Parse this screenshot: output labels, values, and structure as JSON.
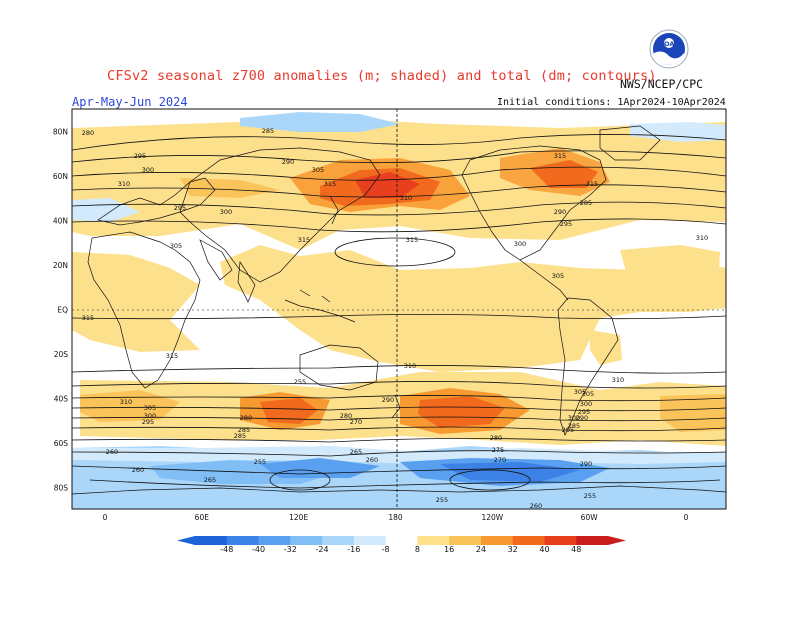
{
  "header": {
    "title": "CFSv2 seasonal z700 anomalies (m; shaded) and total (dm; contours)",
    "period": "Apr-May-Jun 2024",
    "initial_conditions": "Initial conditions: 1Apr2024-10Apr2024",
    "agency": "NWS/NCEP/CPC",
    "logo_text": "NOAA"
  },
  "map": {
    "lat_labels": [
      "80N",
      "60N",
      "40N",
      "20N",
      "EQ",
      "20S",
      "40S",
      "60S",
      "80S"
    ],
    "lon_labels": [
      "0",
      "60E",
      "120E",
      "180",
      "120W",
      "60W",
      "0"
    ],
    "contour_labels": [
      "285",
      "280",
      "290",
      "295",
      "300",
      "305",
      "310",
      "315",
      "295",
      "300",
      "305",
      "310",
      "315",
      "315",
      "285",
      "290",
      "295",
      "300",
      "305",
      "310",
      "315",
      "315",
      "315",
      "315",
      "310",
      "310",
      "305",
      "300",
      "295",
      "290",
      "285",
      "280",
      "275",
      "270",
      "265",
      "260",
      "255",
      "260",
      "265",
      "255",
      "260",
      "255",
      "255",
      "310",
      "305",
      "300",
      "295",
      "290",
      "280",
      "270",
      "285",
      "260",
      "280",
      "285",
      "290",
      "295",
      "300",
      "305"
    ]
  },
  "colorbar": {
    "ticks": [
      "-48",
      "-40",
      "-32",
      "-24",
      "-16",
      "-8",
      "8",
      "16",
      "24",
      "32",
      "40",
      "48"
    ],
    "colors": [
      "#1e64d8",
      "#3c82e6",
      "#5aa0f0",
      "#82bef6",
      "#aad6fa",
      "#d2eafc",
      "#ffffff",
      "#fde08c",
      "#fbc45a",
      "#f89a32",
      "#f26a1e",
      "#e8401e",
      "#c81e1e"
    ]
  }
}
